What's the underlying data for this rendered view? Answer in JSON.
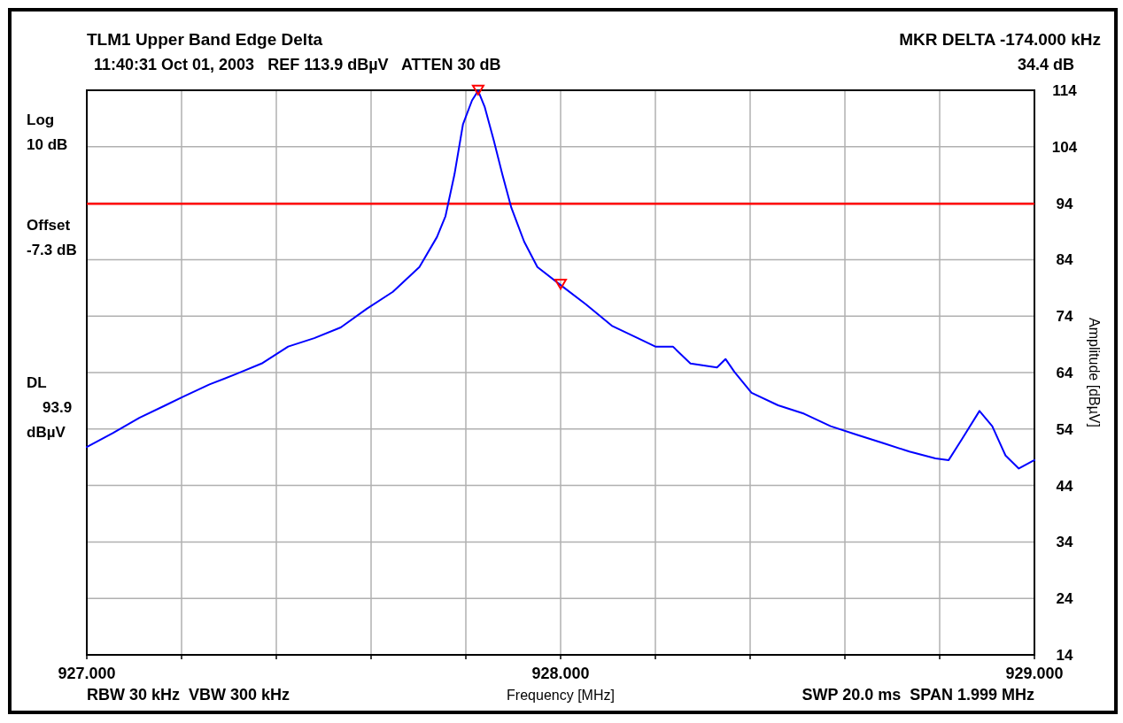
{
  "chart_data": {
    "type": "line",
    "title": "TLM1 Upper Band Edge Delta",
    "subtitle": "11:40:31 Oct 01, 2003   REF 113.9 dBµV   ATTEN 30 dB",
    "xlabel": "Frequency [MHz]",
    "ylabel": "Amplitude [dBµV]",
    "annotations": [
      "MKR DELTA -174.000 kHz",
      "34.4 dB",
      "Log 10 dB",
      "Offset -7.3 dB",
      "RBW 30 kHz  VBW 300 kHz",
      "SWP 20.0 ms  SPAN 1.999 MHz",
      "DL 93.9 dBµV"
    ],
    "xlim": [
      927,
      929
    ],
    "ylim": [
      14,
      114
    ],
    "xticks": [
      {
        "value": 927,
        "label": "927.000"
      },
      {
        "value": 927.2,
        "label": null
      },
      {
        "value": 927.4,
        "label": null
      },
      {
        "value": 927.6,
        "label": null
      },
      {
        "value": 927.8,
        "label": null
      },
      {
        "value": 928,
        "label": "928.000"
      },
      {
        "value": 928.2,
        "label": null
      },
      {
        "value": 928.4,
        "label": null
      },
      {
        "value": 928.6,
        "label": null
      },
      {
        "value": 928.8,
        "label": null
      },
      {
        "value": 929,
        "label": "929.000"
      }
    ],
    "yticks": [
      14,
      24,
      34,
      44,
      54,
      64,
      74,
      84,
      94,
      104,
      114
    ],
    "grid": true,
    "ref_lines": [
      {
        "axis": "y",
        "value": 93.9,
        "color": "#ff0000"
      }
    ],
    "series": [
      {
        "color": "#0000ff",
        "x": [
          927.0,
          927.055,
          927.111,
          927.166,
          927.203,
          927.259,
          927.314,
          927.369,
          927.425,
          927.48,
          927.536,
          927.591,
          927.646,
          927.702,
          927.739,
          927.757,
          927.776,
          927.794,
          927.813,
          927.826,
          927.84,
          927.859,
          927.877,
          927.896,
          927.923,
          927.951,
          928.0,
          928.053,
          928.108,
          928.163,
          928.2,
          928.237,
          928.274,
          928.33,
          928.348,
          928.367,
          928.403,
          928.459,
          928.514,
          928.57,
          928.625,
          928.681,
          928.736,
          928.791,
          928.819,
          928.847,
          928.884,
          928.911,
          928.939,
          928.967,
          929.0
        ],
        "values": [
          50.8,
          53.3,
          56.0,
          58.2,
          59.7,
          61.9,
          63.7,
          65.6,
          68.6,
          70.1,
          72.0,
          75.3,
          78.3,
          82.7,
          88.0,
          91.7,
          99.1,
          108.0,
          112.2,
          113.9,
          111.0,
          105.1,
          99.1,
          93.2,
          87.2,
          82.7,
          79.5,
          76.1,
          72.3,
          70.1,
          68.6,
          68.6,
          65.6,
          64.9,
          66.4,
          64.1,
          60.4,
          58.2,
          56.7,
          54.5,
          53.0,
          51.5,
          50.0,
          48.8,
          48.5,
          52.2,
          57.2,
          54.5,
          49.3,
          47.0,
          48.5
        ]
      },
      {
        "type": "scatter",
        "color": "#ff0000",
        "marker": "triangle",
        "x": [
          927.826,
          928.0
        ],
        "values": [
          113.9,
          79.5
        ]
      }
    ]
  }
}
